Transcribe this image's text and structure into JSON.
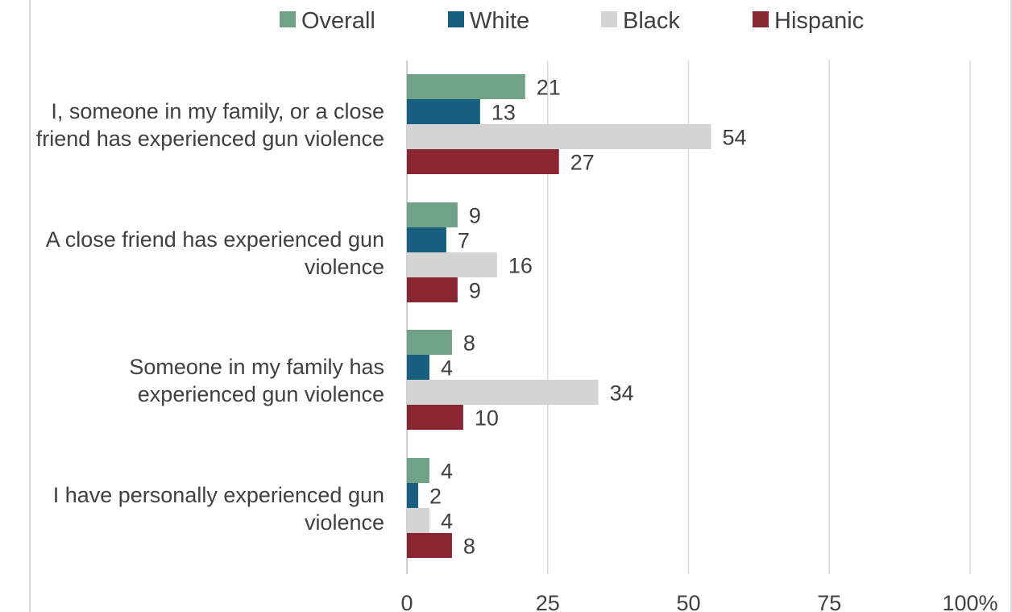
{
  "chart_data": {
    "type": "bar",
    "orientation": "horizontal",
    "title": "",
    "xlabel": "",
    "ylabel": "",
    "xlim": [
      0,
      100
    ],
    "ticks": [
      "0",
      "25",
      "50",
      "75",
      "100%"
    ],
    "tick_values": [
      0,
      25,
      50,
      75,
      100
    ],
    "grid": true,
    "legend_position": "top",
    "categories": [
      [
        "I, someone in my family, or a close",
        "friend has experienced gun violence"
      ],
      [
        "A close friend has experienced gun",
        "violence"
      ],
      [
        "Someone in my family has",
        "experienced gun violence"
      ],
      [
        "I have personally experienced gun",
        "violence"
      ]
    ],
    "series": [
      {
        "name": "Overall",
        "color": "#6fa287",
        "values": [
          21,
          9,
          8,
          4
        ]
      },
      {
        "name": "White",
        "color": "#175e7f",
        "values": [
          13,
          7,
          4,
          2
        ]
      },
      {
        "name": "Black",
        "color": "#d4d4d4",
        "values": [
          54,
          16,
          34,
          4
        ]
      },
      {
        "name": "Hispanic",
        "color": "#882632",
        "values": [
          27,
          9,
          10,
          8
        ]
      }
    ]
  }
}
